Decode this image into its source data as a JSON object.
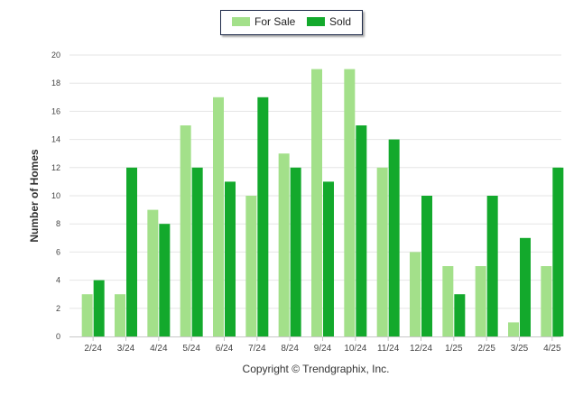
{
  "chart_data": {
    "type": "bar",
    "categories": [
      "2/24",
      "3/24",
      "4/24",
      "5/24",
      "6/24",
      "7/24",
      "8/24",
      "9/24",
      "10/24",
      "11/24",
      "12/24",
      "1/25",
      "2/25",
      "3/25",
      "4/25"
    ],
    "series": [
      {
        "name": "For Sale",
        "values": [
          3,
          3,
          9,
          15,
          17,
          10,
          13,
          19,
          19,
          12,
          6,
          5,
          5,
          1,
          5
        ],
        "color": "#a3e08a"
      },
      {
        "name": "Sold",
        "values": [
          4,
          12,
          8,
          12,
          11,
          17,
          12,
          11,
          15,
          14,
          10,
          3,
          10,
          7,
          12
        ],
        "color": "#13a92c"
      }
    ],
    "ylabel": "Number of Homes",
    "ylim": [
      0,
      20
    ],
    "yticks": [
      0,
      2,
      4,
      6,
      8,
      10,
      12,
      14,
      16,
      18,
      20
    ],
    "grid": true,
    "legend_position": "top-center"
  },
  "footer": {
    "copyright": "Copyright © Trendgraphix, Inc."
  }
}
